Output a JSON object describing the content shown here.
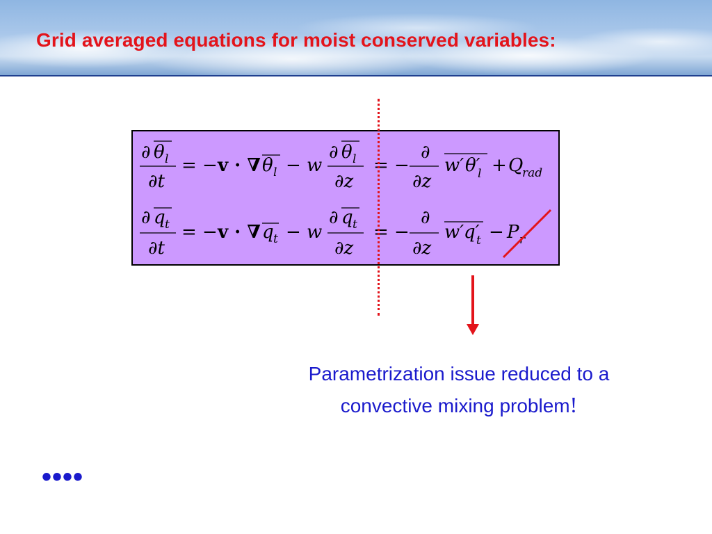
{
  "slide": {
    "title": "Grid averaged equations for moist conserved variables:",
    "note_line1": "Parametrization issue reduced to a",
    "note_line2": "convective mixing problem",
    "note_exclaim": "!",
    "ellipsis": "••••"
  },
  "equation1": {
    "num_partial": "∂",
    "num_var": "θ",
    "num_sub": "l",
    "den": "∂t",
    "eq_minus": "= −",
    "vdotgrad": "v · ∇",
    "adv_var": "θ",
    "adv_sub": "l",
    "minus_w": "− w",
    "vert_num_partial": "∂",
    "vert_num_var": "θ",
    "vert_num_sub": "l",
    "vert_den": "∂z",
    "eq_minus2": "= −",
    "flux_num": "∂",
    "flux_den": "∂z",
    "flux_w": "w′",
    "flux_var": "θ′",
    "flux_sub": "l",
    "plus": "+",
    "source": "Q",
    "source_sub": "rad"
  },
  "equation2": {
    "num_partial": "∂",
    "num_var": "q",
    "num_sub": "t",
    "den": "∂t",
    "eq_minus": "= −",
    "vdotgrad": "v · ∇",
    "adv_var": "q",
    "adv_sub": "t",
    "minus_w": "− w",
    "vert_num_partial": "∂",
    "vert_num_var": "q",
    "vert_num_sub": "t",
    "vert_den": "∂z",
    "eq_minus2": "= −",
    "flux_num": "∂",
    "flux_den": "∂z",
    "flux_w": "w′",
    "flux_var": "q′",
    "flux_sub": "t",
    "minus": "−",
    "sink": "P",
    "sink_sub": "r"
  },
  "colors": {
    "title": "#e3141b",
    "box_fill": "#cc99ff",
    "annotation_red": "#e3141b",
    "note_blue": "#1a1acc"
  }
}
